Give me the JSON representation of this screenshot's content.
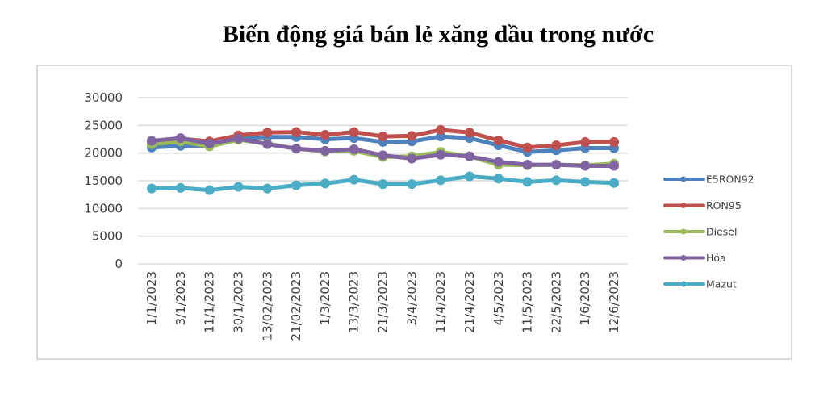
{
  "title": "Biến động giá bán lẻ xăng dầu trong nước",
  "chart_data": {
    "type": "line",
    "title": "Biến động giá bán lẻ xăng dầu trong nước",
    "xlabel": "",
    "ylabel": "",
    "ylim": [
      0,
      30000
    ],
    "yticks": [
      0,
      5000,
      10000,
      15000,
      20000,
      25000,
      30000
    ],
    "grid": true,
    "legend_position": "right",
    "categories": [
      "1/1/2023",
      "3/1/2023",
      "11/1/2023",
      "30/1/2023",
      "13/02/2023",
      "21/02/2023",
      "1/3/2023",
      "13/3/2023",
      "21/3/2023",
      "3/4/2023",
      "11/4/2023",
      "21/4/2023",
      "4/5/2023",
      "11/5/2023",
      "22/5/2023",
      "1/6/2023",
      "12/6/2023"
    ],
    "series": [
      {
        "name": "E5RON92",
        "color": "#4f81bd",
        "values": [
          21000,
          21300,
          21300,
          22600,
          22900,
          22900,
          22500,
          22700,
          22000,
          22100,
          23000,
          22700,
          21400,
          20200,
          20500,
          20900,
          20900
        ]
      },
      {
        "name": "RON95",
        "color": "#c0504d",
        "values": [
          21800,
          22600,
          22100,
          23200,
          23700,
          23800,
          23300,
          23800,
          23000,
          23100,
          24200,
          23700,
          22300,
          21000,
          21400,
          22000,
          22000
        ]
      },
      {
        "name": "Diesel",
        "color": "#9bbb59",
        "values": [
          21600,
          22100,
          21200,
          22400,
          21700,
          20800,
          20300,
          20400,
          19300,
          19400,
          20200,
          19400,
          17900,
          17800,
          17900,
          17800,
          18100
        ]
      },
      {
        "name": "Hỏa",
        "color": "#8064a2",
        "values": [
          22200,
          22700,
          21700,
          22600,
          21600,
          20800,
          20400,
          20700,
          19600,
          19000,
          19700,
          19400,
          18400,
          17900,
          17900,
          17700,
          17700
        ]
      },
      {
        "name": "Mazut",
        "color": "#4bacc6",
        "values": [
          13600,
          13700,
          13300,
          13900,
          13600,
          14200,
          14500,
          15200,
          14400,
          14400,
          15100,
          15800,
          15400,
          14800,
          15100,
          14800,
          14600
        ]
      }
    ]
  }
}
